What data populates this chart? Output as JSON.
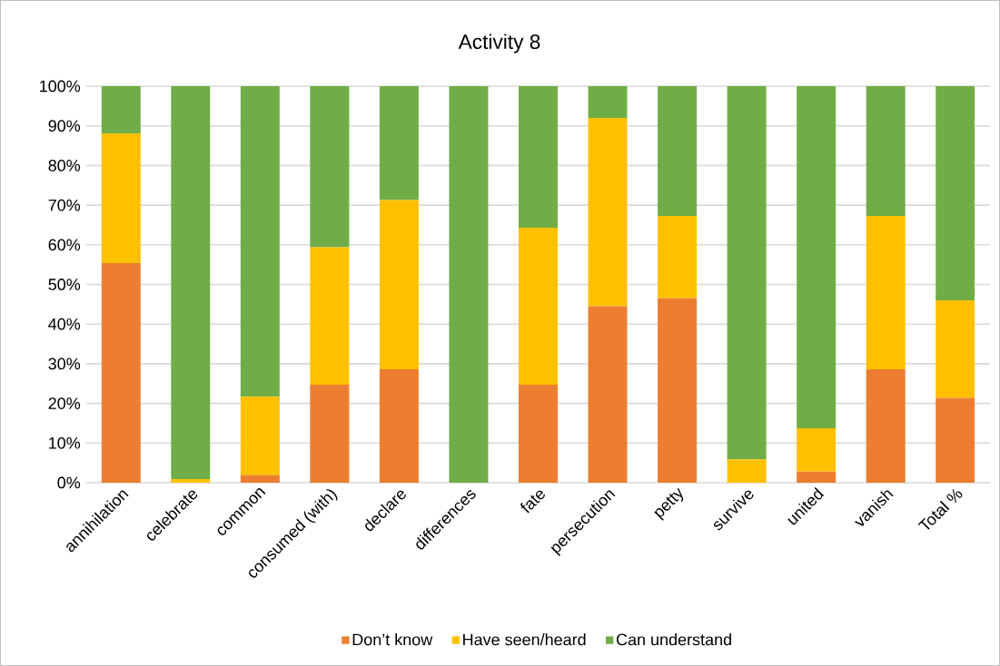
{
  "chart_data": {
    "type": "bar",
    "title": "Activity 8",
    "stacked": true,
    "grid": "y",
    "legend": "bottom",
    "categories": [
      "annihilation",
      "celebrate",
      "common",
      "consumed (with)",
      "declare",
      "differences",
      "fate",
      "persecution",
      "petty",
      "survive",
      "united",
      "vanish",
      "Total %"
    ],
    "series": [
      {
        "name": "Don’t know",
        "color": "#ed7d31",
        "values": [
          55.4,
          0,
          1.9,
          24.7,
          28.6,
          0,
          24.7,
          44.5,
          46.5,
          0,
          2.8,
          28.6,
          21.4
        ]
      },
      {
        "name": "Have seen/heard",
        "color": "#ffc000",
        "values": [
          32.7,
          0.9,
          19.8,
          34.7,
          42.7,
          0,
          39.6,
          47.5,
          20.8,
          5.9,
          10.9,
          38.7,
          24.6
        ]
      },
      {
        "name": "Can understand",
        "color": "#70ad47",
        "values": [
          11.9,
          99.1,
          78.3,
          40.6,
          28.7,
          100,
          35.7,
          8.0,
          32.7,
          94.1,
          86.3,
          32.7,
          54.0
        ]
      }
    ],
    "ylim": [
      0,
      100
    ],
    "yticks": [
      {
        "value": 0,
        "label": "0%"
      },
      {
        "value": 10,
        "label": "10%"
      },
      {
        "value": 20,
        "label": "20%"
      },
      {
        "value": 30,
        "label": "30%"
      },
      {
        "value": 40,
        "label": "40%"
      },
      {
        "value": 50,
        "label": "50%"
      },
      {
        "value": 60,
        "label": "60%"
      },
      {
        "value": 70,
        "label": "70%"
      },
      {
        "value": 80,
        "label": "80%"
      },
      {
        "value": 90,
        "label": "90%"
      },
      {
        "value": 100,
        "label": "100%"
      }
    ]
  }
}
